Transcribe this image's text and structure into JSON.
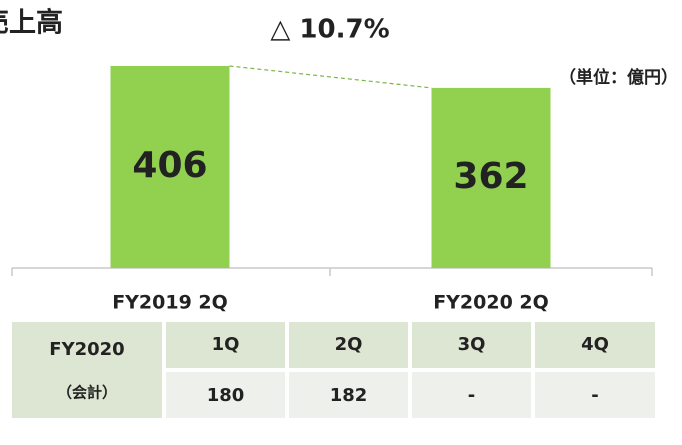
{
  "chart_data": {
    "type": "bar",
    "title": "売上高",
    "unit_label": "（単位：億円）",
    "annotation": "△ 10.7%",
    "categories": [
      "FY2019 2Q",
      "FY2020 2Q"
    ],
    "values": [
      406,
      362
    ],
    "color": "#92d050",
    "annotation_color": "#7ab648"
  },
  "table": {
    "row_header": [
      "FY2020",
      "（会計）"
    ],
    "columns": [
      "1Q",
      "2Q",
      "3Q",
      "4Q"
    ],
    "rows": [
      [
        180,
        182,
        "-",
        "-"
      ]
    ]
  }
}
